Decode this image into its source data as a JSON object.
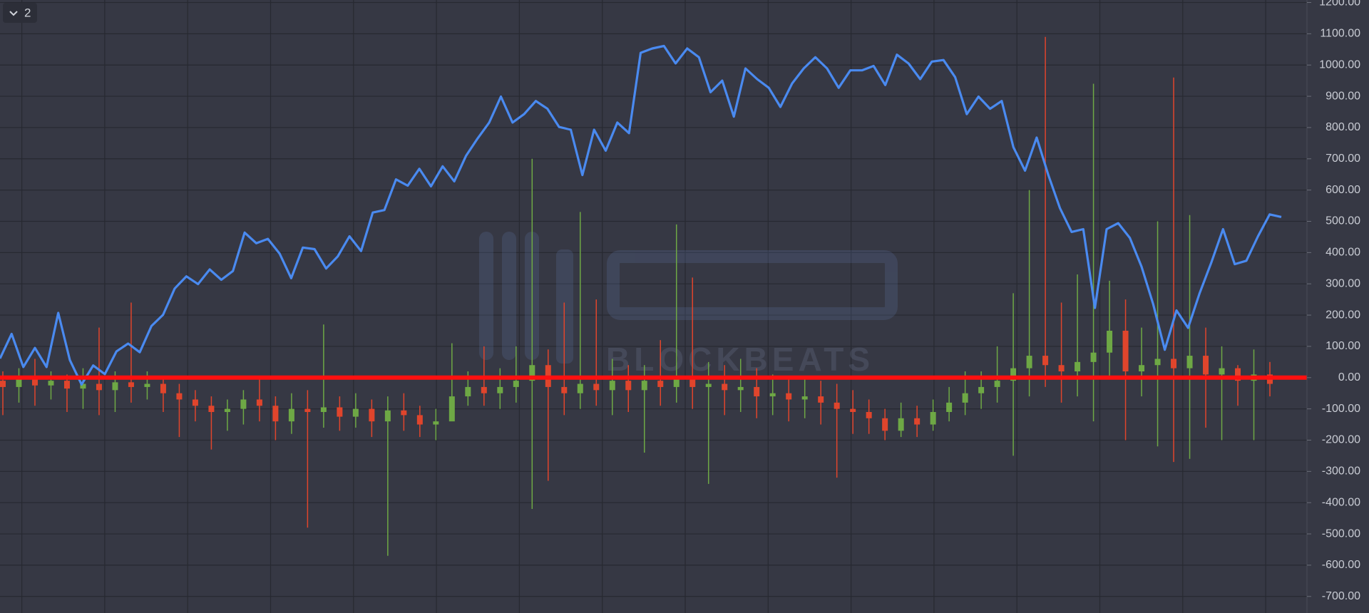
{
  "chart_data": {
    "type": "combo",
    "pane_label": "2",
    "watermark": "BLOCKBEATS",
    "ylim": [
      -753,
      1208
    ],
    "yticks": [
      {
        "value": 1200,
        "label": "1200.00"
      },
      {
        "value": 1100,
        "label": "1100.00"
      },
      {
        "value": 1000,
        "label": "1000.00"
      },
      {
        "value": 900,
        "label": "900.00"
      },
      {
        "value": 800,
        "label": "800.00"
      },
      {
        "value": 700,
        "label": "700.00"
      },
      {
        "value": 600,
        "label": "600.00"
      },
      {
        "value": 500,
        "label": "500.00"
      },
      {
        "value": 400,
        "label": "400.00"
      },
      {
        "value": 300,
        "label": "300.00"
      },
      {
        "value": 200,
        "label": "200.00"
      },
      {
        "value": 100,
        "label": "100.00"
      },
      {
        "value": 0,
        "label": "0.00"
      },
      {
        "value": -100,
        "label": "-100.00"
      },
      {
        "value": -200,
        "label": "-200.00"
      },
      {
        "value": -300,
        "label": "-300.00"
      },
      {
        "value": -400,
        "label": "-400.00"
      },
      {
        "value": -500,
        "label": "-500.00"
      },
      {
        "value": -600,
        "label": "-600.00"
      },
      {
        "value": -700,
        "label": "-700.00"
      }
    ],
    "grid": true,
    "hline": {
      "value": 0,
      "color": "#ff1010"
    },
    "series": [
      {
        "type": "candlestick",
        "up_color": "#6ea845",
        "down_color": "#e0452c",
        "open": [
          -10,
          -30,
          -5,
          -25,
          -10,
          -35,
          -20,
          -40,
          -15,
          -30,
          -20,
          -50,
          -70,
          -90,
          -110,
          -100,
          -70,
          -90,
          -140,
          -100,
          -110,
          -95,
          -125,
          -100,
          -140,
          -105,
          -120,
          -150,
          -140,
          -60,
          -30,
          -50,
          -30,
          -10,
          40,
          -30,
          -50,
          -20,
          -40,
          -10,
          -40,
          -10,
          -30,
          0,
          -30,
          -20,
          -40,
          -30,
          -60,
          -50,
          -70,
          -60,
          -80,
          -100,
          -110,
          -130,
          -170,
          -130,
          -150,
          -110,
          -80,
          -50,
          -30,
          -10,
          30,
          70,
          40,
          20,
          50,
          80,
          150,
          20,
          40,
          60,
          30,
          70,
          10,
          30,
          -10,
          10
        ],
        "high": [
          20,
          30,
          60,
          20,
          10,
          30,
          160,
          20,
          240,
          20,
          0,
          -20,
          -40,
          -60,
          -70,
          -40,
          0,
          -60,
          -50,
          -40,
          170,
          -60,
          -50,
          -70,
          -60,
          -50,
          -90,
          -100,
          110,
          20,
          100,
          30,
          100,
          700,
          90,
          240,
          530,
          250,
          60,
          40,
          40,
          120,
          490,
          320,
          50,
          40,
          60,
          30,
          10,
          0,
          0,
          -10,
          -20,
          -40,
          -70,
          -100,
          -80,
          -90,
          -70,
          -30,
          20,
          20,
          100,
          270,
          600,
          1090,
          240,
          330,
          940,
          310,
          250,
          160,
          500,
          960,
          520,
          160,
          100,
          40,
          90,
          50
        ],
        "low": [
          -120,
          -80,
          -90,
          -70,
          -110,
          -100,
          -120,
          -110,
          -80,
          -70,
          -110,
          -190,
          -140,
          -230,
          -170,
          -150,
          -140,
          -200,
          -180,
          -480,
          -160,
          -170,
          -160,
          -190,
          -570,
          -170,
          -190,
          -200,
          -130,
          -90,
          -90,
          -100,
          -80,
          -420,
          -330,
          -120,
          -100,
          -90,
          -120,
          -110,
          -240,
          -90,
          -80,
          -100,
          -340,
          -120,
          -110,
          -130,
          -120,
          -140,
          -130,
          -150,
          -320,
          -180,
          -180,
          -200,
          -190,
          -190,
          -170,
          -140,
          -120,
          -100,
          -80,
          -250,
          -60,
          -30,
          -80,
          -60,
          -140,
          0,
          -200,
          -60,
          -220,
          -270,
          -260,
          -160,
          -200,
          -90,
          -200,
          -60
        ],
        "close": [
          -30,
          -5,
          -25,
          -10,
          -35,
          -20,
          -40,
          -15,
          -30,
          -20,
          -50,
          -70,
          -90,
          -110,
          -100,
          -70,
          -90,
          -140,
          -100,
          -110,
          -95,
          -125,
          -100,
          -140,
          -105,
          -120,
          -150,
          -140,
          -60,
          -30,
          -50,
          -30,
          -10,
          40,
          -30,
          -50,
          -20,
          -40,
          -10,
          -40,
          -10,
          -30,
          0,
          -30,
          -20,
          -40,
          -30,
          -60,
          -50,
          -70,
          -60,
          -80,
          -100,
          -110,
          -130,
          -170,
          -130,
          -150,
          -110,
          -80,
          -50,
          -30,
          -10,
          30,
          70,
          40,
          20,
          50,
          80,
          150,
          20,
          40,
          60,
          30,
          70,
          10,
          30,
          -10,
          10,
          -20
        ]
      },
      {
        "type": "line",
        "color": "#4a8af0",
        "values": [
          61,
          140,
          34,
          95,
          34,
          207,
          56,
          -22,
          39,
          11,
          84,
          109,
          81,
          165,
          201,
          285,
          324,
          299,
          346,
          313,
          341,
          464,
          430,
          444,
          397,
          318,
          416,
          411,
          349,
          388,
          452,
          405,
          528,
          536,
          634,
          614,
          668,
          612,
          676,
          628,
          709,
          765,
          816,
          899,
          816,
          843,
          885,
          860,
          802,
          793,
          648,
          793,
          726,
          816,
          782,
          1039,
          1053,
          1061,
          1005,
          1053,
          1025,
          913,
          950,
          835,
          989,
          955,
          927,
          866,
          941,
          989,
          1025,
          989,
          927,
          983,
          983,
          997,
          936,
          1033,
          1005,
          955,
          1011,
          1016,
          961,
          843,
          899,
          860,
          885,
          737,
          662,
          768,
          648,
          542,
          466,
          475,
          223,
          475,
          494,
          447,
          355,
          235,
          89,
          215,
          159,
          271,
          369,
          475,
          363,
          374,
          452,
          522,
          514
        ]
      }
    ]
  }
}
